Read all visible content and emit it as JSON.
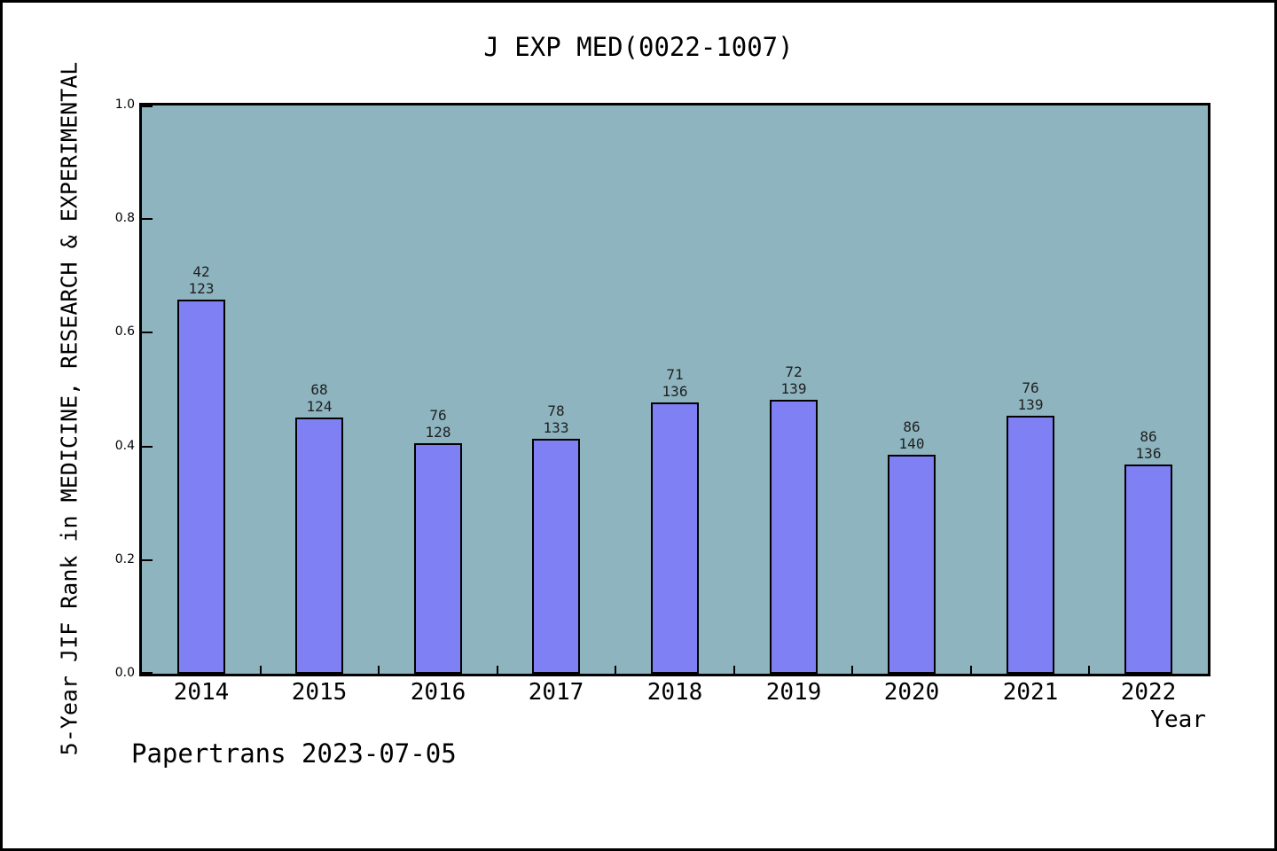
{
  "figure": {
    "title": "J EXP MED(0022-1007)",
    "xlabel": "Year",
    "ylabel": "5-Year JIF Rank in MEDICINE, RESEARCH & EXPERIMENTAL",
    "footer": "Papertrans 2023-07-05"
  },
  "chart_data": {
    "type": "bar",
    "title": "J EXP MED(0022-1007)",
    "xlabel": "Year",
    "ylabel": "5-Year JIF Rank in MEDICINE, RESEARCH & EXPERIMENTAL",
    "footer": "Papertrans 2023-07-05",
    "categories": [
      "2014",
      "2015",
      "2016",
      "2017",
      "2018",
      "2019",
      "2020",
      "2021",
      "2022"
    ],
    "ranks": [
      42,
      68,
      76,
      78,
      71,
      72,
      86,
      76,
      86
    ],
    "totals": [
      123,
      124,
      128,
      133,
      136,
      139,
      140,
      139,
      136
    ],
    "values": [
      0.659,
      0.452,
      0.406,
      0.414,
      0.478,
      0.482,
      0.386,
      0.453,
      0.368
    ],
    "bar_label_format": "rank over total, two lines above each bar",
    "ylim": [
      0,
      1
    ],
    "yticks": [
      "0.0",
      "0.2",
      "0.4",
      "0.6",
      "0.8",
      "1.0"
    ],
    "grid": false,
    "legend": null,
    "colors": {
      "plot_bg": "#8DB4BF",
      "bar_fill": "#8080F5",
      "bar_border": "#000000",
      "frame": "#000000"
    }
  }
}
